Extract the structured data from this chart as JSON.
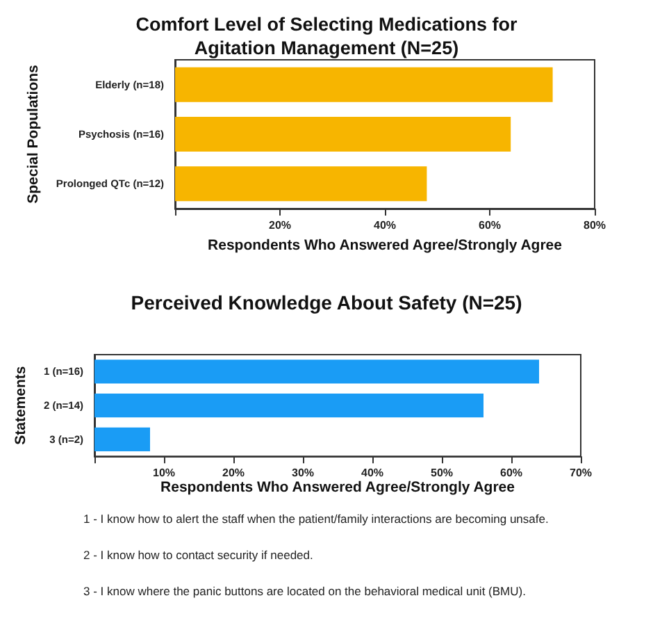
{
  "chart_data": [
    {
      "type": "bar",
      "orientation": "horizontal",
      "title": "Comfort Level of Selecting Medications for\nAgitation Management (N=25)",
      "xlabel": "Respondents Who Answered Agree/Strongly Agree",
      "ylabel": "Special Populations",
      "categories": [
        "Elderly (n=18)",
        "Psychosis (n=16)",
        "Prolonged QTc (n=12)"
      ],
      "values": [
        72,
        64,
        48
      ],
      "color": "#f7b500",
      "xlim": [
        0,
        80
      ],
      "xticks": [
        {
          "value": 0,
          "label": null
        },
        {
          "value": 20,
          "label": "20%"
        },
        {
          "value": 40,
          "label": "40%"
        },
        {
          "value": 60,
          "label": "60%"
        },
        {
          "value": 80,
          "label": "80%"
        }
      ]
    },
    {
      "type": "bar",
      "orientation": "horizontal",
      "title": "Perceived Knowledge About Safety (N=25)",
      "xlabel": "Respondents Who Answered Agree/Strongly Agree",
      "ylabel": "Statements",
      "categories": [
        "1 (n=16)",
        "2 (n=14)",
        "3 (n=2)"
      ],
      "values": [
        64,
        56,
        8
      ],
      "color": "#1a9cf5",
      "xlim": [
        0,
        70
      ],
      "xticks": [
        {
          "value": 0,
          "label": null
        },
        {
          "value": 10,
          "label": "10%"
        },
        {
          "value": 20,
          "label": "20%"
        },
        {
          "value": 30,
          "label": "30%"
        },
        {
          "value": 40,
          "label": "40%"
        },
        {
          "value": 50,
          "label": "50%"
        },
        {
          "value": 60,
          "label": "60%"
        },
        {
          "value": 70,
          "label": "70%"
        }
      ],
      "annotations": [
        "1 - I know how to alert the staff when the patient/family interactions are becoming unsafe.",
        "2 - I know how to contact security if needed.",
        "3 - I know where the panic buttons are located on the behavioral medical unit (BMU)."
      ]
    }
  ]
}
